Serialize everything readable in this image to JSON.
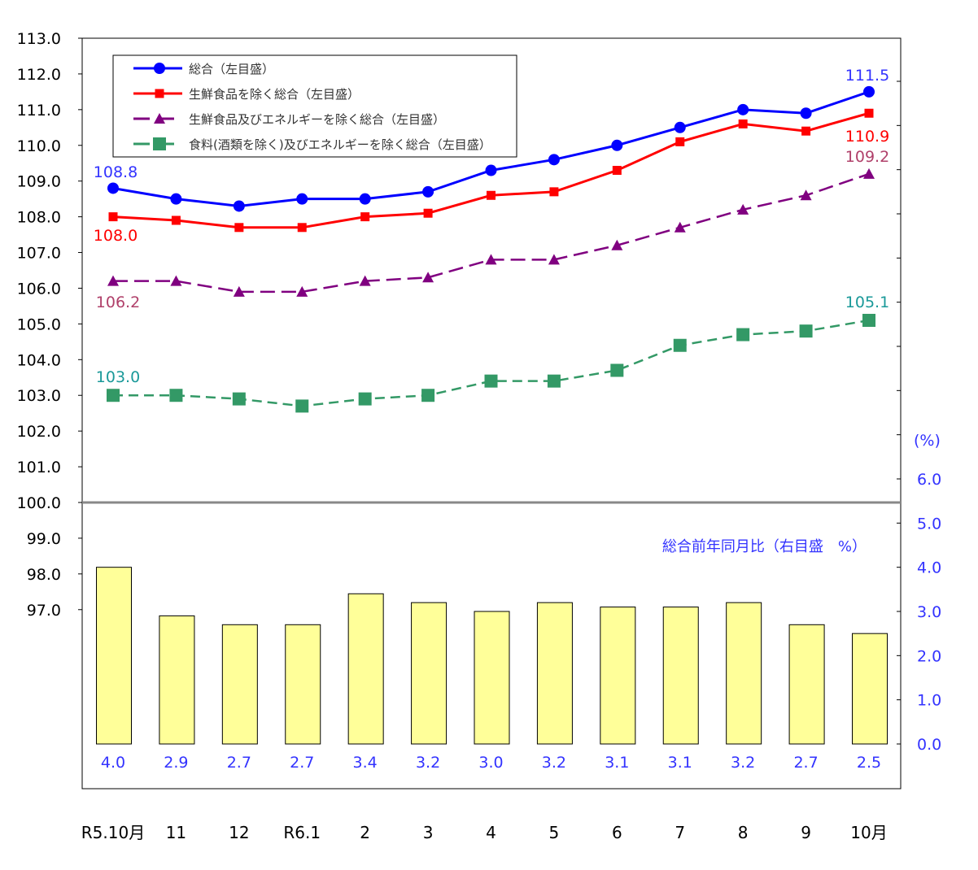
{
  "chart_data": {
    "type": "line",
    "categories": [
      "R5.10月",
      "11",
      "12",
      "R6.1",
      "2",
      "3",
      "4",
      "5",
      "6",
      "7",
      "8",
      "9",
      "10月"
    ],
    "left_axis": {
      "ylim": [
        97.0,
        113.0
      ],
      "ticks": [
        "97.0",
        "98.0",
        "99.0",
        "100.0",
        "101.0",
        "102.0",
        "103.0",
        "104.0",
        "105.0",
        "106.0",
        "107.0",
        "108.0",
        "109.0",
        "110.0",
        "111.0",
        "112.0",
        "113.0"
      ]
    },
    "right_axis": {
      "unit_label": "(%)",
      "ylim": [
        0.0,
        6.0
      ],
      "ticks": [
        "0.0",
        "1.0",
        "2.0",
        "3.0",
        "4.0",
        "5.0",
        "6.0"
      ],
      "color": "#3333ff"
    },
    "baseline": 100.0,
    "series": [
      {
        "name": "総合（左目盛）",
        "color": "#0000ff",
        "marker": "circle",
        "dash": "solid",
        "values": [
          108.8,
          108.5,
          108.3,
          108.5,
          108.5,
          108.7,
          109.3,
          109.6,
          110.0,
          110.5,
          111.0,
          110.9,
          111.5
        ],
        "labels": [
          {
            "index": 0,
            "text": "108.8"
          },
          {
            "index": 12,
            "text": "111.5"
          }
        ],
        "label_color": "#3333ff"
      },
      {
        "name": "生鮮食品を除く総合（左目盛）",
        "color": "#ff0000",
        "marker": "square",
        "dash": "solid",
        "values": [
          108.0,
          107.9,
          107.7,
          107.7,
          108.0,
          108.1,
          108.6,
          108.7,
          109.3,
          110.1,
          110.6,
          110.4,
          110.9
        ],
        "labels": [
          {
            "index": 0,
            "text": "108.0"
          },
          {
            "index": 12,
            "text": "110.9"
          }
        ],
        "label_color": "#ff0000"
      },
      {
        "name": "生鮮食品及びエネルギーを除く総合（左目盛）",
        "color": "#800080",
        "marker": "triangle",
        "dash": "long",
        "values": [
          106.2,
          106.2,
          105.9,
          105.9,
          106.2,
          106.3,
          106.8,
          106.8,
          107.2,
          107.7,
          108.2,
          108.6,
          109.2
        ],
        "labels": [
          {
            "index": 0,
            "text": "106.2"
          },
          {
            "index": 12,
            "text": "109.2"
          }
        ],
        "label_color": "#b0406a"
      },
      {
        "name": "食料(酒類を除く)及びエネルギーを除く総合（左目盛）",
        "color": "#339966",
        "marker": "square-large",
        "dash": "dashed",
        "values": [
          103.0,
          103.0,
          102.9,
          102.7,
          102.9,
          103.0,
          103.4,
          103.4,
          103.7,
          104.4,
          104.7,
          104.8,
          105.1
        ],
        "labels": [
          {
            "index": 0,
            "text": "103.0"
          },
          {
            "index": 12,
            "text": "105.1"
          }
        ],
        "label_color": "#1a9999"
      }
    ],
    "bars": {
      "name": "総合前年同月比（右目盛　%）",
      "axis": "right",
      "color": "#ffff99",
      "values": [
        4.0,
        2.9,
        2.7,
        2.7,
        3.4,
        3.2,
        3.0,
        3.2,
        3.1,
        3.1,
        3.2,
        2.7,
        2.5
      ],
      "labels": [
        "4.0",
        "2.9",
        "2.7",
        "2.7",
        "3.4",
        "3.2",
        "3.0",
        "3.2",
        "3.1",
        "3.1",
        "3.2",
        "2.7",
        "2.5"
      ]
    },
    "legend_placement": "top-left",
    "grid": false
  }
}
